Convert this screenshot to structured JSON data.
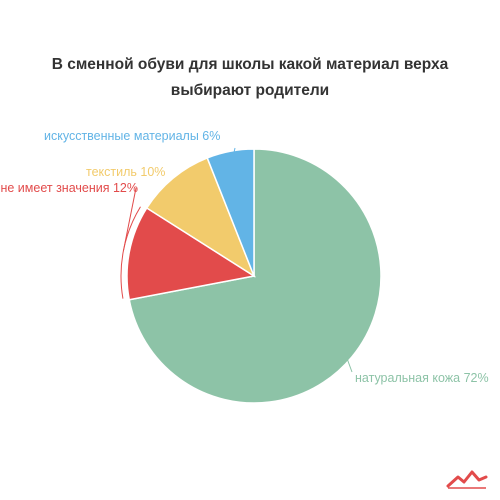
{
  "chart_data": {
    "type": "pie",
    "title": "В сменной обуви для школы какой материал верха выбирают родители",
    "title_lines": [
      "В сменной обуви для школы какой материал верха",
      "выбирают родители"
    ],
    "slices": [
      {
        "label": "натуральная кожа 72%",
        "value": 72,
        "color": "#8DC3A7"
      },
      {
        "label": "не имеет значения 12%",
        "value": 12,
        "color": "#E24B4B"
      },
      {
        "label": "текстиль 10%",
        "value": 10,
        "color": "#F2CB6C"
      },
      {
        "label": "искусственные материалы 6%",
        "value": 6,
        "color": "#62B4E6"
      }
    ]
  },
  "logo": {
    "color": "#E24B4B"
  }
}
